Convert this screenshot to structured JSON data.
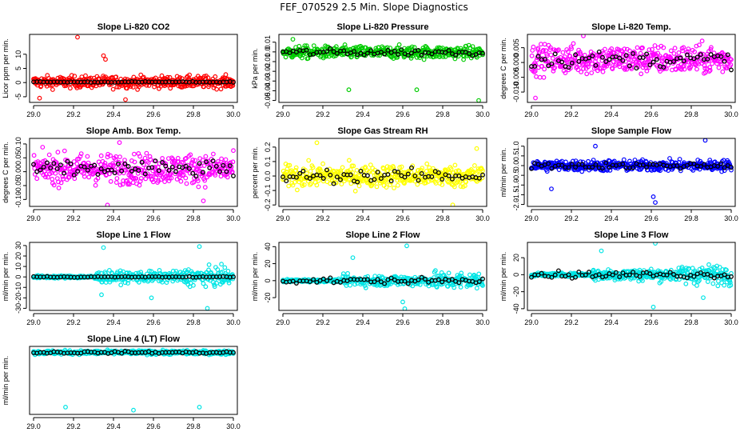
{
  "page_title": "FEF_070529  2.5 Min. Slope Diagnostics",
  "x_ticks": [
    29.0,
    29.2,
    29.4,
    29.6,
    29.8,
    30.0
  ],
  "x_tick_labels": [
    "29.0",
    "29.2",
    "29.4",
    "29.6",
    "29.8",
    "30.0"
  ],
  "chart_data": [
    {
      "type": "scatter",
      "title": "Slope Li-820 CO2",
      "xlabel": "",
      "ylabel": "Licor ppm per min.",
      "color": "#ff0000",
      "xlim": [
        28.98,
        30.02
      ],
      "ylim": [
        -7,
        17
      ],
      "yticks": [
        -5,
        0,
        5,
        10
      ],
      "ytick_labels": [
        "-5",
        "0",
        "5",
        "10"
      ],
      "center": 0.2,
      "spread": 1.6,
      "outliers": [
        [
          29.22,
          16
        ],
        [
          29.35,
          9.5
        ],
        [
          29.36,
          8.2
        ],
        [
          29.03,
          -5.5
        ],
        [
          29.46,
          -6.0
        ]
      ],
      "black_series": "5-minute averages"
    },
    {
      "type": "scatter",
      "title": "Slope Li-820 Pressure",
      "xlabel": "",
      "ylabel": "kPa per min.",
      "color": "#00cc00",
      "xlim": [
        28.98,
        30.02
      ],
      "ylim": [
        -0.052,
        0.018
      ],
      "yticks": [
        -0.05,
        -0.04,
        -0.03,
        -0.02,
        -0.01,
        0.0,
        0.01
      ],
      "ytick_labels": [
        "-0.05",
        "-0.04",
        "-0.03",
        "-0.02",
        "-0.01",
        "0.0",
        "0.01"
      ],
      "center": -0.0005,
      "spread": 0.005,
      "outliers": [
        [
          29.33,
          -0.039
        ],
        [
          29.67,
          -0.039
        ],
        [
          29.98,
          -0.05
        ],
        [
          29.05,
          0.013
        ]
      ],
      "black_series": "5-minute averages"
    },
    {
      "type": "scatter",
      "title": "Slope Li-820 Temp.",
      "xlabel": "",
      "ylabel": "degrees C per min.",
      "color": "#ff00ff",
      "xlim": [
        28.98,
        30.02
      ],
      "ylim": [
        -0.0135,
        0.0095
      ],
      "yticks": [
        -0.01,
        -0.005,
        0.0,
        0.005
      ],
      "ytick_labels": [
        "-0.010",
        "-0.005",
        "0.000",
        "0.005"
      ],
      "center": 0.001,
      "spread": 0.0038,
      "outliers": [
        [
          29.26,
          0.009
        ],
        [
          29.02,
          -0.012
        ]
      ],
      "black_series": "5-minute averages"
    },
    {
      "type": "scatter",
      "title": "Slope Amb. Box Temp.",
      "xlabel": "",
      "ylabel": "degrees C per min.",
      "color": "#ff00ff",
      "xlim": [
        28.98,
        30.02
      ],
      "ylim": [
        -0.125,
        0.12
      ],
      "yticks": [
        -0.1,
        -0.05,
        0.0,
        0.05,
        0.1
      ],
      "ytick_labels": [
        "-0.10",
        "-0.05",
        "0.00",
        "0.05",
        "0.10"
      ],
      "center": 0.01,
      "spread": 0.042,
      "outliers": [
        [
          29.37,
          -0.12
        ],
        [
          29.43,
          0.105
        ],
        [
          29.85,
          -0.105
        ]
      ],
      "black_series": "5-minute averages"
    },
    {
      "type": "scatter",
      "title": "Slope Gas Stream RH",
      "xlabel": "",
      "ylabel": "percent per min.",
      "color": "#ffff00",
      "xlim": [
        28.98,
        30.02
      ],
      "ylim": [
        -0.21,
        0.26
      ],
      "yticks": [
        -0.2,
        -0.1,
        0.0,
        0.1,
        0.2
      ],
      "ytick_labels": [
        "-0.2",
        "-0.1",
        "0.0",
        "0.1",
        "0.2"
      ],
      "center": 0.0,
      "spread": 0.06,
      "outliers": [
        [
          29.17,
          0.23
        ],
        [
          29.85,
          -0.2
        ],
        [
          29.97,
          0.19
        ]
      ],
      "black_series": "5-minute averages"
    },
    {
      "type": "scatter",
      "title": "Slope Sample Flow",
      "xlabel": "",
      "ylabel": "ml/min per min.",
      "color": "#0000ff",
      "xlim": [
        28.98,
        30.02
      ],
      "ylim": [
        -2.1,
        1.4
      ],
      "yticks": [
        -2.0,
        -1.5,
        -1.0,
        -0.5,
        0.0,
        0.5,
        1.0
      ],
      "ytick_labels": [
        "-2.0",
        "-1.5",
        "-1.0",
        "-0.5",
        "0.0",
        "0.5",
        "1.0"
      ],
      "center": 0.0,
      "spread": 0.22,
      "outliers": [
        [
          29.32,
          1.0
        ],
        [
          29.62,
          -1.9
        ],
        [
          29.61,
          -1.6
        ],
        [
          29.87,
          1.3
        ],
        [
          29.1,
          -1.2
        ]
      ],
      "black_series": "5-minute averages"
    },
    {
      "type": "scatter",
      "title": "Slope Line 1 Flow",
      "xlabel": "",
      "ylabel": "ml/min per min.",
      "color": "#00e5e5",
      "xlim": [
        28.98,
        30.02
      ],
      "ylim": [
        -32,
        33
      ],
      "yticks": [
        -30,
        -20,
        -10,
        0,
        10,
        20,
        30
      ],
      "ytick_labels": [
        "-30",
        "-20",
        "-10",
        "0",
        "10",
        "20",
        "30"
      ],
      "center": 0.0,
      "spread": 4.0,
      "outliers": [
        [
          29.35,
          28
        ],
        [
          29.83,
          29
        ],
        [
          29.87,
          -30
        ],
        [
          29.59,
          -20
        ],
        [
          29.34,
          -17
        ]
      ],
      "black_series": "5-minute averages"
    },
    {
      "type": "scatter",
      "title": "Slope Line 2 Flow",
      "xlabel": "",
      "ylabel": "ml/min per min.",
      "color": "#00e5e5",
      "xlim": [
        28.98,
        30.02
      ],
      "ylim": [
        -35,
        45
      ],
      "yticks": [
        -20,
        0,
        20,
        40
      ],
      "ytick_labels": [
        "-20",
        "0",
        "20",
        "40"
      ],
      "center": 0.0,
      "spread": 5.0,
      "outliers": [
        [
          29.35,
          27
        ],
        [
          29.62,
          41
        ],
        [
          29.61,
          -33
        ],
        [
          29.6,
          -25
        ]
      ],
      "black_series": "5-minute averages"
    },
    {
      "type": "scatter",
      "title": "Slope Line 3 Flow",
      "xlabel": "",
      "ylabel": "ml/min per min.",
      "color": "#00e5e5",
      "xlim": [
        28.98,
        30.02
      ],
      "ylim": [
        -42,
        38
      ],
      "yticks": [
        -40,
        -20,
        0,
        20
      ],
      "ytick_labels": [
        "-40",
        "-20",
        "0",
        "20"
      ],
      "center": 0.0,
      "spread": 5.5,
      "outliers": [
        [
          29.35,
          28
        ],
        [
          29.62,
          37
        ],
        [
          29.61,
          -38
        ],
        [
          29.86,
          -27
        ]
      ],
      "black_series": "5-minute averages"
    },
    {
      "type": "scatter",
      "title": "Slope Line 4 (LT) Flow",
      "xlabel": "",
      "ylabel": "ml/min per min.",
      "color": "#00e5e5",
      "xlim": [
        28.98,
        30.02
      ],
      "ylim": [
        -1.02,
        0.1
      ],
      "yticks": [],
      "ytick_labels": [],
      "center": 0.0,
      "spread": 0.025,
      "outliers": [
        [
          29.16,
          -0.9
        ],
        [
          29.5,
          -0.95
        ],
        [
          29.83,
          -0.9
        ]
      ],
      "black_series": "5-minute averages"
    }
  ]
}
